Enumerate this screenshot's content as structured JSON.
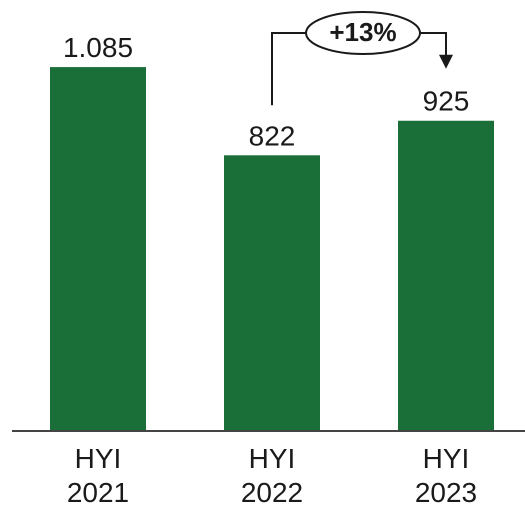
{
  "chart_data": {
    "type": "bar",
    "categories": [
      [
        "HYI",
        "2021"
      ],
      [
        "HYI",
        "2022"
      ],
      [
        "HYI",
        "2023"
      ]
    ],
    "values": [
      1085,
      822,
      925
    ],
    "value_labels": [
      "1.085",
      "822",
      "925"
    ],
    "ylim": [
      0,
      1285
    ],
    "bar_color": "#1a6e37",
    "grid": false,
    "annotation": {
      "text": "+13%",
      "from_index": 1,
      "to_index": 2
    }
  }
}
